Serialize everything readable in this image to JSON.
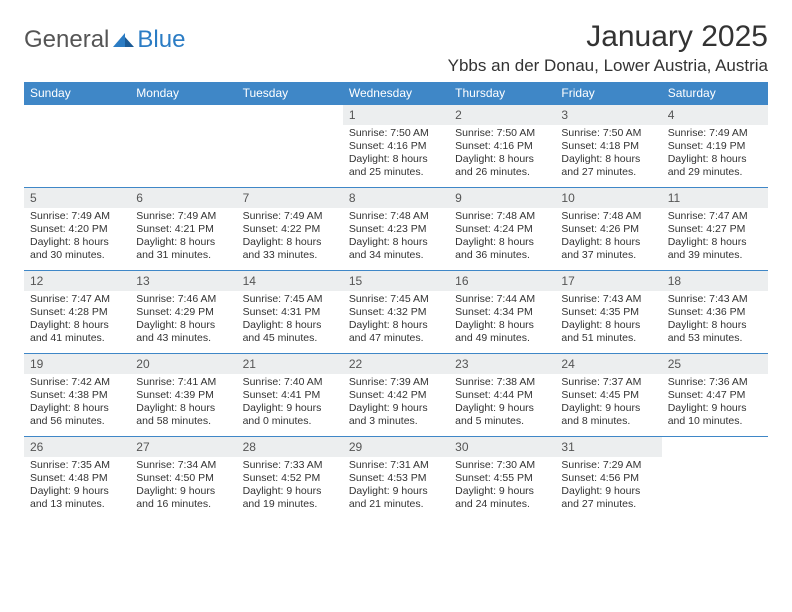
{
  "logo": {
    "general": "General",
    "blue": "Blue"
  },
  "title": "January 2025",
  "location": "Ybbs an der Donau, Lower Austria, Austria",
  "colors": {
    "header_bg": "#3f87c7",
    "daynum_bg": "#eceeef",
    "logo_blue": "#2b7cc4",
    "text": "#333333",
    "border": "#3f87c7"
  },
  "dayNames": [
    "Sunday",
    "Monday",
    "Tuesday",
    "Wednesday",
    "Thursday",
    "Friday",
    "Saturday"
  ],
  "weeks": [
    [
      {
        "n": "",
        "sr": "",
        "ss": "",
        "dl": "",
        "empty": true
      },
      {
        "n": "",
        "sr": "",
        "ss": "",
        "dl": "",
        "empty": true
      },
      {
        "n": "",
        "sr": "",
        "ss": "",
        "dl": "",
        "empty": true
      },
      {
        "n": "1",
        "sr": "Sunrise: 7:50 AM",
        "ss": "Sunset: 4:16 PM",
        "dl": "Daylight: 8 hours and 25 minutes."
      },
      {
        "n": "2",
        "sr": "Sunrise: 7:50 AM",
        "ss": "Sunset: 4:16 PM",
        "dl": "Daylight: 8 hours and 26 minutes."
      },
      {
        "n": "3",
        "sr": "Sunrise: 7:50 AM",
        "ss": "Sunset: 4:18 PM",
        "dl": "Daylight: 8 hours and 27 minutes."
      },
      {
        "n": "4",
        "sr": "Sunrise: 7:49 AM",
        "ss": "Sunset: 4:19 PM",
        "dl": "Daylight: 8 hours and 29 minutes."
      }
    ],
    [
      {
        "n": "5",
        "sr": "Sunrise: 7:49 AM",
        "ss": "Sunset: 4:20 PM",
        "dl": "Daylight: 8 hours and 30 minutes."
      },
      {
        "n": "6",
        "sr": "Sunrise: 7:49 AM",
        "ss": "Sunset: 4:21 PM",
        "dl": "Daylight: 8 hours and 31 minutes."
      },
      {
        "n": "7",
        "sr": "Sunrise: 7:49 AM",
        "ss": "Sunset: 4:22 PM",
        "dl": "Daylight: 8 hours and 33 minutes."
      },
      {
        "n": "8",
        "sr": "Sunrise: 7:48 AM",
        "ss": "Sunset: 4:23 PM",
        "dl": "Daylight: 8 hours and 34 minutes."
      },
      {
        "n": "9",
        "sr": "Sunrise: 7:48 AM",
        "ss": "Sunset: 4:24 PM",
        "dl": "Daylight: 8 hours and 36 minutes."
      },
      {
        "n": "10",
        "sr": "Sunrise: 7:48 AM",
        "ss": "Sunset: 4:26 PM",
        "dl": "Daylight: 8 hours and 37 minutes."
      },
      {
        "n": "11",
        "sr": "Sunrise: 7:47 AM",
        "ss": "Sunset: 4:27 PM",
        "dl": "Daylight: 8 hours and 39 minutes."
      }
    ],
    [
      {
        "n": "12",
        "sr": "Sunrise: 7:47 AM",
        "ss": "Sunset: 4:28 PM",
        "dl": "Daylight: 8 hours and 41 minutes."
      },
      {
        "n": "13",
        "sr": "Sunrise: 7:46 AM",
        "ss": "Sunset: 4:29 PM",
        "dl": "Daylight: 8 hours and 43 minutes."
      },
      {
        "n": "14",
        "sr": "Sunrise: 7:45 AM",
        "ss": "Sunset: 4:31 PM",
        "dl": "Daylight: 8 hours and 45 minutes."
      },
      {
        "n": "15",
        "sr": "Sunrise: 7:45 AM",
        "ss": "Sunset: 4:32 PM",
        "dl": "Daylight: 8 hours and 47 minutes."
      },
      {
        "n": "16",
        "sr": "Sunrise: 7:44 AM",
        "ss": "Sunset: 4:34 PM",
        "dl": "Daylight: 8 hours and 49 minutes."
      },
      {
        "n": "17",
        "sr": "Sunrise: 7:43 AM",
        "ss": "Sunset: 4:35 PM",
        "dl": "Daylight: 8 hours and 51 minutes."
      },
      {
        "n": "18",
        "sr": "Sunrise: 7:43 AM",
        "ss": "Sunset: 4:36 PM",
        "dl": "Daylight: 8 hours and 53 minutes."
      }
    ],
    [
      {
        "n": "19",
        "sr": "Sunrise: 7:42 AM",
        "ss": "Sunset: 4:38 PM",
        "dl": "Daylight: 8 hours and 56 minutes."
      },
      {
        "n": "20",
        "sr": "Sunrise: 7:41 AM",
        "ss": "Sunset: 4:39 PM",
        "dl": "Daylight: 8 hours and 58 minutes."
      },
      {
        "n": "21",
        "sr": "Sunrise: 7:40 AM",
        "ss": "Sunset: 4:41 PM",
        "dl": "Daylight: 9 hours and 0 minutes."
      },
      {
        "n": "22",
        "sr": "Sunrise: 7:39 AM",
        "ss": "Sunset: 4:42 PM",
        "dl": "Daylight: 9 hours and 3 minutes."
      },
      {
        "n": "23",
        "sr": "Sunrise: 7:38 AM",
        "ss": "Sunset: 4:44 PM",
        "dl": "Daylight: 9 hours and 5 minutes."
      },
      {
        "n": "24",
        "sr": "Sunrise: 7:37 AM",
        "ss": "Sunset: 4:45 PM",
        "dl": "Daylight: 9 hours and 8 minutes."
      },
      {
        "n": "25",
        "sr": "Sunrise: 7:36 AM",
        "ss": "Sunset: 4:47 PM",
        "dl": "Daylight: 9 hours and 10 minutes."
      }
    ],
    [
      {
        "n": "26",
        "sr": "Sunrise: 7:35 AM",
        "ss": "Sunset: 4:48 PM",
        "dl": "Daylight: 9 hours and 13 minutes."
      },
      {
        "n": "27",
        "sr": "Sunrise: 7:34 AM",
        "ss": "Sunset: 4:50 PM",
        "dl": "Daylight: 9 hours and 16 minutes."
      },
      {
        "n": "28",
        "sr": "Sunrise: 7:33 AM",
        "ss": "Sunset: 4:52 PM",
        "dl": "Daylight: 9 hours and 19 minutes."
      },
      {
        "n": "29",
        "sr": "Sunrise: 7:31 AM",
        "ss": "Sunset: 4:53 PM",
        "dl": "Daylight: 9 hours and 21 minutes."
      },
      {
        "n": "30",
        "sr": "Sunrise: 7:30 AM",
        "ss": "Sunset: 4:55 PM",
        "dl": "Daylight: 9 hours and 24 minutes."
      },
      {
        "n": "31",
        "sr": "Sunrise: 7:29 AM",
        "ss": "Sunset: 4:56 PM",
        "dl": "Daylight: 9 hours and 27 minutes."
      },
      {
        "n": "",
        "sr": "",
        "ss": "",
        "dl": "",
        "empty": true
      }
    ]
  ]
}
